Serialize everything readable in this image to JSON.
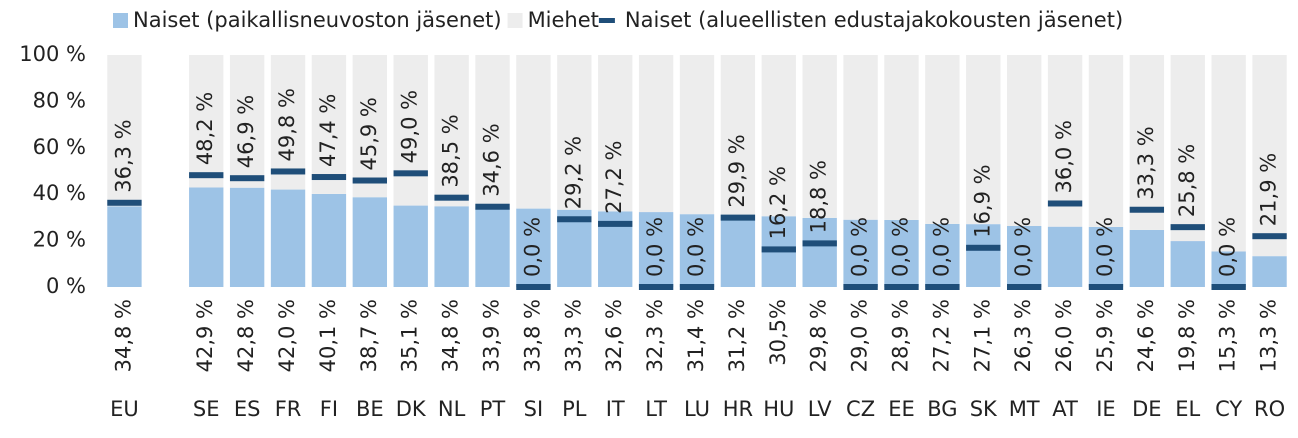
{
  "chart_data": {
    "type": "stacked_bar_marker",
    "categories": [
      "EU",
      null,
      "SE",
      "ES",
      "FR",
      "FI",
      "BE",
      "DK",
      "NL",
      "PT",
      "SI",
      "PL",
      "IT",
      "LT",
      "LU",
      "HR",
      "HU",
      "LV",
      "CZ",
      "EE",
      "BG",
      "SK",
      "MT",
      "AT",
      "IE",
      "DE",
      "EL",
      "CY",
      "RO"
    ],
    "series": [
      {
        "name": "Naiset (paikallisneuvoston jäsenet)",
        "color": "#9dc3e6",
        "kind": "bar",
        "values": [
          34.8,
          null,
          42.9,
          42.8,
          42.0,
          40.1,
          38.7,
          35.1,
          34.8,
          33.9,
          33.8,
          33.3,
          32.6,
          32.3,
          31.4,
          31.2,
          30.5,
          29.8,
          29.0,
          28.9,
          27.2,
          27.1,
          26.3,
          26.0,
          25.9,
          24.6,
          19.8,
          15.3,
          13.3
        ],
        "value_labels": [
          "34,8 %",
          null,
          "42,9 %",
          "42,8 %",
          "42,0 %",
          "40,1 %",
          "38,7 %",
          "35,1 %",
          "34,8 %",
          "33,9 %",
          "33,8 %",
          "33,3 %",
          "32,6 %",
          "32,3 %",
          "31,4 %",
          "31,2 %",
          "30,5%",
          "29,8 %",
          "29,0 %",
          "28,9 %",
          "27,2 %",
          "27,1 %",
          "26,3 %",
          "26,0 %",
          "25,9 %",
          "24,6 %",
          "19,8 %",
          "15,3 %",
          "13,3 %"
        ]
      },
      {
        "name": "Miehet",
        "color": "#ededed",
        "kind": "bar",
        "values": [
          65.2,
          null,
          57.1,
          57.2,
          58.0,
          59.9,
          61.3,
          64.9,
          65.2,
          66.1,
          66.2,
          66.7,
          67.4,
          67.7,
          68.6,
          68.8,
          69.5,
          70.2,
          71.0,
          71.1,
          72.8,
          72.9,
          73.7,
          74.0,
          74.1,
          75.4,
          80.2,
          84.7,
          86.7
        ]
      },
      {
        "name": "Naiset (alueellisten edustajakokousten jäsenet)",
        "color": "#1f4e79",
        "kind": "marker",
        "values": [
          36.3,
          null,
          48.2,
          46.9,
          49.8,
          47.4,
          45.9,
          49.0,
          38.5,
          34.6,
          0.0,
          29.2,
          27.2,
          0.0,
          0.0,
          29.9,
          16.2,
          18.8,
          0.0,
          0.0,
          0.0,
          16.9,
          0.0,
          36.0,
          0.0,
          33.3,
          25.8,
          0.0,
          21.9
        ],
        "value_labels": [
          "36,3 %",
          null,
          "48,2 %",
          "46,9 %",
          "49,8 %",
          "47,4 %",
          "45,9 %",
          "49,0 %",
          "38,5 %",
          "34,6 %",
          "0,0 %",
          "29,2 %",
          "27,2 %",
          "0,0 %",
          "0,0 %",
          "29,9 %",
          "16,2 %",
          "18,8 %",
          "0,0 %",
          "0,0 %",
          "0,0 %",
          "16,9 %",
          "0,0 %",
          "36,0 %",
          "0,0 %",
          "33,3 %",
          "25,8 %",
          "0,0 %",
          "21,9 %"
        ]
      }
    ],
    "ylim": [
      0,
      100
    ],
    "yticks": [
      {
        "value": 0,
        "label": "0 %"
      },
      {
        "value": 20,
        "label": "20 %"
      },
      {
        "value": 40,
        "label": "40 %"
      },
      {
        "value": 60,
        "label": "60 %"
      },
      {
        "value": 80,
        "label": "80 %"
      },
      {
        "value": 100,
        "label": "100 %"
      }
    ],
    "legend": "top"
  }
}
